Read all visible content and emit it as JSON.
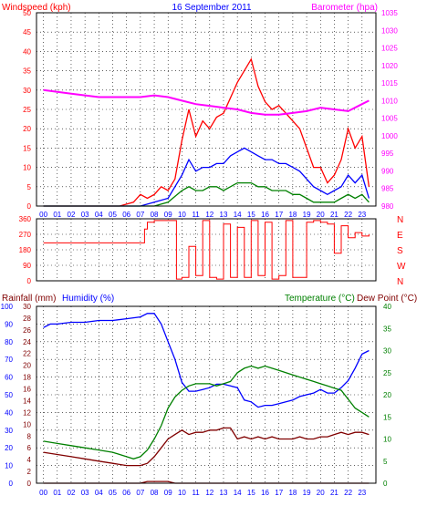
{
  "date_title": "16 September 2011",
  "colors": {
    "red": "#ff0000",
    "blue": "#0000ff",
    "green": "#008000",
    "magenta": "#ff00ff",
    "darkred": "#800000",
    "frame": "#000000",
    "grid": "#000000",
    "dirtext": "#ff0000"
  },
  "chart_data": [
    {
      "type": "line",
      "title": "16 September 2011",
      "left_axis_label": "Windspeed (kph)",
      "right_axis_label": "Barometer (hpa)",
      "x_ticks": [
        "00",
        "01",
        "02",
        "03",
        "04",
        "05",
        "06",
        "07",
        "08",
        "09",
        "10",
        "11",
        "12",
        "13",
        "14",
        "15",
        "16",
        "17",
        "18",
        "19",
        "20",
        "21",
        "22",
        "23"
      ],
      "y_left_ticks": [
        "0",
        "5",
        "10",
        "15",
        "20",
        "25",
        "30",
        "35",
        "40",
        "45",
        "50"
      ],
      "y_left_range": [
        0,
        50
      ],
      "y_right_ticks": [
        "980",
        "985",
        "990",
        "995",
        "1000",
        "1005",
        "1010",
        "1015",
        "1020",
        "1025",
        "1030",
        "1035"
      ],
      "y_right_range": [
        980,
        1035
      ],
      "grid": true,
      "series": [
        {
          "role": "gust",
          "color": "red",
          "x": [
            0,
            5,
            5.5,
            6.5,
            7,
            7.5,
            8,
            8.5,
            9,
            9.5,
            10,
            10.5,
            11,
            11.5,
            12,
            12.5,
            13,
            13.5,
            14,
            14.5,
            15,
            15.5,
            16,
            16.5,
            17,
            17.5,
            18,
            18.5,
            19,
            19.5,
            20,
            20.5,
            21,
            21.5,
            22,
            22.5,
            23,
            23.5
          ],
          "values": [
            0,
            0,
            0,
            1,
            3,
            2,
            3,
            5,
            4,
            7,
            17,
            25,
            18,
            22,
            20,
            23,
            24,
            28,
            32,
            35,
            38,
            31,
            27,
            25,
            26,
            24,
            22,
            20,
            15,
            10,
            10,
            6,
            8,
            12,
            20,
            15,
            18,
            5
          ]
        },
        {
          "role": "average",
          "color": "blue",
          "x": [
            0,
            7,
            8,
            9,
            10,
            10.5,
            11,
            11.5,
            12,
            12.5,
            13,
            13.5,
            14,
            14.5,
            15,
            15.5,
            16,
            16.5,
            17,
            17.5,
            18,
            18.5,
            19,
            19.5,
            20,
            20.5,
            21,
            21.5,
            22,
            22.5,
            23,
            23.5
          ],
          "values": [
            0,
            0,
            1,
            2,
            8,
            12,
            9,
            10,
            10,
            11,
            11,
            13,
            14,
            15,
            14,
            13,
            12,
            12,
            11,
            11,
            10,
            9,
            7,
            5,
            4,
            3,
            4,
            5,
            8,
            6,
            8,
            2
          ]
        },
        {
          "role": "steady",
          "color": "green",
          "x": [
            0,
            8,
            9,
            10,
            10.5,
            11,
            11.5,
            12,
            12.5,
            13,
            13.5,
            14,
            14.5,
            15,
            15.5,
            16,
            16.5,
            17,
            17.5,
            18,
            18.5,
            19,
            19.5,
            20,
            20.5,
            21,
            21.5,
            22,
            22.5,
            23,
            23.5
          ],
          "values": [
            0,
            0,
            1,
            4,
            5,
            4,
            4,
            5,
            5,
            4,
            5,
            6,
            6,
            6,
            5,
            5,
            4,
            4,
            4,
            3,
            3,
            2,
            1,
            1,
            1,
            1,
            2,
            3,
            2,
            3,
            1
          ]
        },
        {
          "role": "pressure",
          "color": "magenta",
          "axis": "right",
          "x": [
            0,
            1,
            2,
            3,
            4,
            5,
            6,
            7,
            8,
            9,
            10,
            11,
            12,
            13,
            14,
            15,
            16,
            17,
            18,
            19,
            20,
            21,
            22,
            23,
            23.5
          ],
          "values": [
            1013,
            1012.5,
            1012,
            1011.5,
            1011,
            1011,
            1011,
            1011,
            1011.5,
            1011,
            1010,
            1009,
            1008.5,
            1008,
            1007.5,
            1006.5,
            1006,
            1006,
            1006.5,
            1007,
            1008,
            1007.5,
            1007,
            1009,
            1010
          ]
        }
      ]
    },
    {
      "type": "line",
      "title": "",
      "y_ticks": [
        "0",
        "90",
        "180",
        "270",
        "360"
      ],
      "y_range": [
        0,
        360
      ],
      "right_labels": [
        "N",
        "W",
        "S",
        "E",
        "N"
      ],
      "grid": true,
      "series": [
        {
          "role": "wind-direction",
          "color": "red",
          "x": [
            0,
            1,
            2,
            3,
            4,
            5,
            6,
            7,
            7.3,
            7.5,
            8,
            8.5,
            9,
            9.5,
            9.6,
            10,
            10.5,
            11,
            11.5,
            12,
            12.5,
            13,
            13.5,
            14,
            14.5,
            15,
            15.5,
            16,
            16.5,
            17,
            17.5,
            18,
            18.5,
            19,
            19.5,
            20,
            20.5,
            21,
            21.5,
            22,
            22.5,
            23,
            23.5
          ],
          "values": [
            220,
            220,
            220,
            220,
            220,
            220,
            220,
            220,
            300,
            340,
            350,
            350,
            350,
            350,
            10,
            20,
            200,
            30,
            350,
            20,
            10,
            330,
            20,
            310,
            20,
            350,
            30,
            340,
            10,
            30,
            350,
            20,
            20,
            340,
            350,
            340,
            330,
            160,
            320,
            250,
            280,
            260,
            270
          ]
        }
      ]
    },
    {
      "type": "line",
      "title": "",
      "left_axis_label": "Rainfall (mm)",
      "left_axis_label2": "Humidity (%)",
      "right_axis_label": "Temperature (°C)",
      "right_axis_label2": "Dew Point (°C)",
      "x_ticks": [
        "00",
        "01",
        "02",
        "03",
        "04",
        "05",
        "06",
        "07",
        "08",
        "09",
        "10",
        "11",
        "12",
        "13",
        "14",
        "15",
        "16",
        "17",
        "18",
        "19",
        "20",
        "21",
        "22",
        "23"
      ],
      "y_outer_ticks": [
        "0",
        "10",
        "20",
        "30",
        "40",
        "50",
        "60",
        "70",
        "80",
        "90",
        "100"
      ],
      "y_outer_range": [
        0,
        100
      ],
      "y_inner_ticks": [
        "0",
        "2",
        "4",
        "6",
        "8",
        "10",
        "12",
        "14",
        "16",
        "18",
        "20",
        "22",
        "24",
        "26",
        "28",
        "30"
      ],
      "y_inner_range": [
        0,
        30
      ],
      "y_right_ticks": [
        "0",
        "5",
        "10",
        "15",
        "20",
        "25",
        "30",
        "35",
        "40"
      ],
      "y_right_range": [
        0,
        40
      ],
      "grid": true,
      "series": [
        {
          "role": "humidity",
          "color": "blue",
          "axis": "outer",
          "x": [
            0,
            0.5,
            1,
            2,
            3,
            4,
            5,
            6,
            7,
            7.5,
            8,
            8.5,
            9,
            9.5,
            10,
            10.5,
            11,
            11.5,
            12,
            12.5,
            13,
            13.5,
            14,
            14.5,
            15,
            15.5,
            16,
            16.5,
            17,
            17.5,
            18,
            18.5,
            19,
            19.5,
            20,
            20.5,
            21,
            21.5,
            22,
            22.5,
            23,
            23.5
          ],
          "values": [
            88,
            90,
            90,
            91,
            91,
            92,
            92,
            93,
            94,
            96,
            96,
            90,
            80,
            70,
            57,
            52,
            52,
            53,
            54,
            56,
            56,
            55,
            54,
            47,
            46,
            43,
            44,
            44,
            45,
            46,
            47,
            49,
            50,
            51,
            53,
            51,
            51,
            54,
            58,
            65,
            73,
            75
          ]
        },
        {
          "role": "temperature",
          "color": "green",
          "axis": "right",
          "x": [
            0,
            1,
            2,
            3,
            4,
            5,
            6,
            6.5,
            7,
            7.5,
            8,
            8.5,
            9,
            9.5,
            10,
            10.5,
            11,
            11.5,
            12,
            12.5,
            13,
            13.5,
            14,
            14.5,
            15,
            15.5,
            16,
            16.5,
            17,
            17.5,
            18,
            18.5,
            19,
            19.5,
            20,
            20.5,
            21,
            21.5,
            22,
            22.5,
            23,
            23.5
          ],
          "values": [
            9.5,
            9,
            8.5,
            8,
            7.5,
            7,
            6,
            5.5,
            6,
            7.5,
            10,
            13,
            17,
            19.5,
            21,
            22,
            22.5,
            22.5,
            22.5,
            22,
            22.5,
            23,
            25,
            26,
            26.5,
            26,
            26.5,
            26,
            25.5,
            25,
            24.5,
            24,
            23.5,
            23,
            22.5,
            22,
            21.5,
            21,
            19,
            17,
            16,
            15
          ]
        },
        {
          "role": "dewpoint",
          "color": "darkred",
          "axis": "right",
          "x": [
            0,
            1,
            2,
            3,
            4,
            5,
            6,
            6.5,
            7,
            7.5,
            8,
            8.5,
            9,
            9.5,
            10,
            10.5,
            11,
            11.5,
            12,
            12.5,
            13,
            13.5,
            14,
            14.5,
            15,
            15.5,
            16,
            16.5,
            17,
            17.5,
            18,
            18.5,
            19,
            19.5,
            20,
            20.5,
            21,
            21.5,
            22,
            22.5,
            23,
            23.5
          ],
          "values": [
            7,
            6.5,
            6,
            5.5,
            5,
            4.5,
            4,
            4,
            4,
            4.5,
            6,
            8,
            10,
            11,
            12,
            11,
            11.5,
            11.5,
            12,
            12,
            12.5,
            12.5,
            10,
            10.5,
            10,
            10.5,
            10,
            10.5,
            10,
            10,
            10,
            10.5,
            10,
            10,
            10.5,
            10.5,
            11,
            11.5,
            11,
            11.5,
            11.5,
            11
          ]
        },
        {
          "role": "rainfall",
          "color": "darkred",
          "axis": "inner",
          "x": [
            0,
            7,
            7.5,
            9,
            9.5,
            23.5
          ],
          "values": [
            0,
            0,
            0.3,
            0.3,
            0,
            0
          ]
        }
      ]
    }
  ]
}
